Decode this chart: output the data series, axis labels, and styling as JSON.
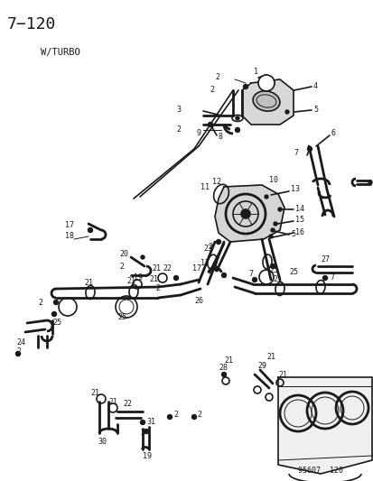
{
  "title": "7−120",
  "subtitle": "W/TURBO",
  "footer": "95607  120",
  "bg_color": "#ffffff",
  "line_color": "#1a1a1a",
  "title_fontsize": 13,
  "subtitle_fontsize": 7.5,
  "label_fontsize": 6.5,
  "fig_width": 4.14,
  "fig_height": 5.33,
  "dpi": 100
}
